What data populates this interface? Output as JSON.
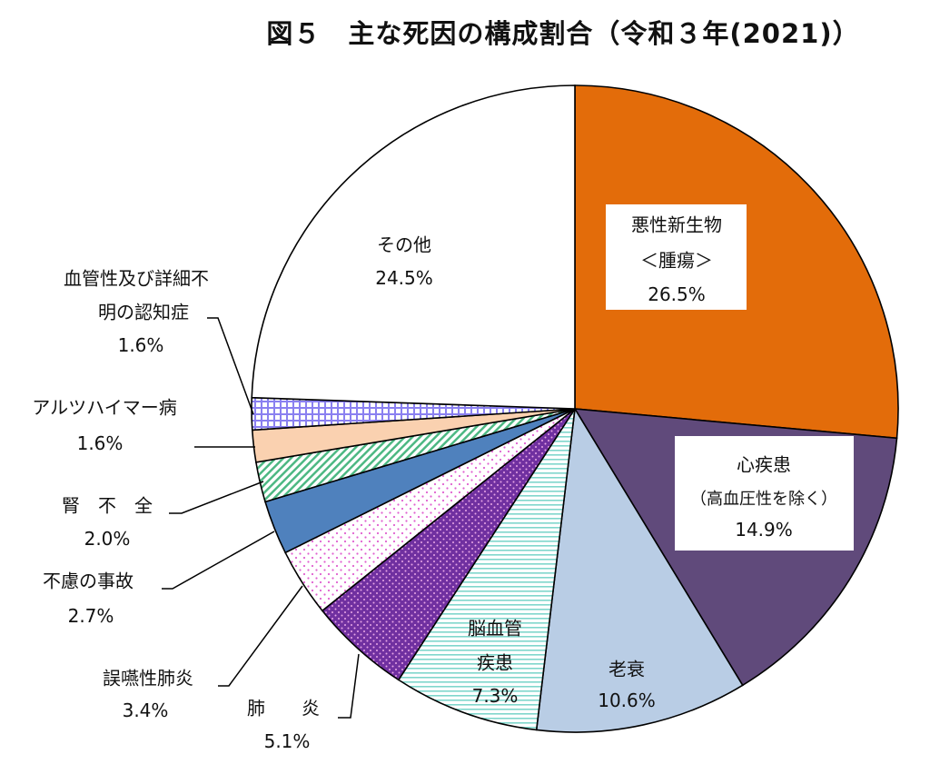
{
  "chart_data": {
    "type": "pie",
    "title": "図５　主な死因の構成割合（令和３年(2021)）",
    "start": "top",
    "direction": "clockwise",
    "slices": [
      {
        "label": "悪性新生物＜腫瘍＞",
        "value": 26.5,
        "value_label": "26.5%",
        "color": "#E36C0A",
        "pattern": "solid"
      },
      {
        "label": "心疾患（高血圧性を除く）",
        "value": 14.9,
        "value_label": "14.9%",
        "color": "#604A7B",
        "pattern": "solid"
      },
      {
        "label": "老衰",
        "value": 10.6,
        "value_label": "10.6%",
        "color": "#B9CDE5",
        "pattern": "solid"
      },
      {
        "label": "脳血管疾患",
        "value": 7.3,
        "value_label": "7.3%",
        "color": "#7FD6CC",
        "pattern": "hstripes"
      },
      {
        "label": "肺炎",
        "value": 5.1,
        "value_label": "5.1%",
        "color": "#7030A0",
        "pattern": "dots-dark"
      },
      {
        "label": "誤嚥性肺炎",
        "value": 3.4,
        "value_label": "3.4%",
        "color": "#E060D0",
        "pattern": "dots-light"
      },
      {
        "label": "不慮の事故",
        "value": 2.7,
        "value_label": "2.7%",
        "color": "#4F81BD",
        "pattern": "solid"
      },
      {
        "label": "腎不全",
        "value": 2.0,
        "value_label": "2.0%",
        "color": "#4DB883",
        "pattern": "diagonal"
      },
      {
        "label": "アルツハイマー病",
        "value": 1.6,
        "value_label": "1.6%",
        "color": "#FAD1B0",
        "pattern": "solid"
      },
      {
        "label": "血管性及び詳細不明の認知症",
        "value": 1.6,
        "value_label": "1.6%",
        "color": "#8A80F0",
        "pattern": "grid"
      },
      {
        "label": "その他",
        "value": 24.5,
        "value_label": "24.5%",
        "color": "#FFFFFF",
        "pattern": "solid"
      }
    ]
  },
  "labels": {
    "neoplasm": [
      "悪性新生物",
      "＜腫瘍＞",
      "26.5%"
    ],
    "heart": [
      "心疾患",
      "（高血圧性を除く）",
      "14.9%"
    ],
    "senility": [
      "老衰",
      "10.6%"
    ],
    "cerebro": [
      "脳血管",
      "疾患",
      "7.3%"
    ],
    "pneumonia": [
      "肺　　炎",
      "5.1%"
    ],
    "aspiration": [
      "誤嚥性肺炎",
      "3.4%"
    ],
    "accident": [
      "不慮の事故",
      "2.7%"
    ],
    "renal": [
      "腎　不　全",
      "2.0%"
    ],
    "alzheimer": [
      "アルツハイマー病",
      "1.6%"
    ],
    "dementia": [
      "血管性及び詳細不",
      "明の認知症",
      "1.6%"
    ],
    "other": [
      "その他",
      "24.5%"
    ]
  }
}
